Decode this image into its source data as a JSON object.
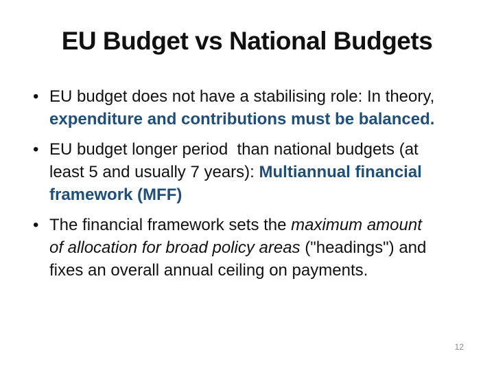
{
  "slide": {
    "title": "EU Budget vs National Budgets",
    "page_number": "12",
    "colors": {
      "background": "#ffffff",
      "text_black": "#111111",
      "accent_blue": "#1F4E79",
      "page_number_gray": "#8a8a8a"
    },
    "bullets": [
      {
        "runs": [
          {
            "text": "EU budget does not have a stabilising role: In theory, ",
            "style": "normal"
          },
          {
            "text": "expenditure and contributions must be balanced.",
            "style": "blue-bold"
          }
        ]
      },
      {
        "runs": [
          {
            "text": "EU budget longer period  than national budgets (at least 5 and usually 7 years): ",
            "style": "normal"
          },
          {
            "text": "Multiannual financial framework (MFF)",
            "style": "blue-bold"
          }
        ]
      },
      {
        "runs": [
          {
            "text": "The financial framework sets the ",
            "style": "normal"
          },
          {
            "text": "maximum amount of allocation for broad policy areas",
            "style": "italic"
          },
          {
            "text": " (\"headings\") and fixes an overall annual ceiling on payments.",
            "style": "normal"
          }
        ]
      }
    ]
  }
}
